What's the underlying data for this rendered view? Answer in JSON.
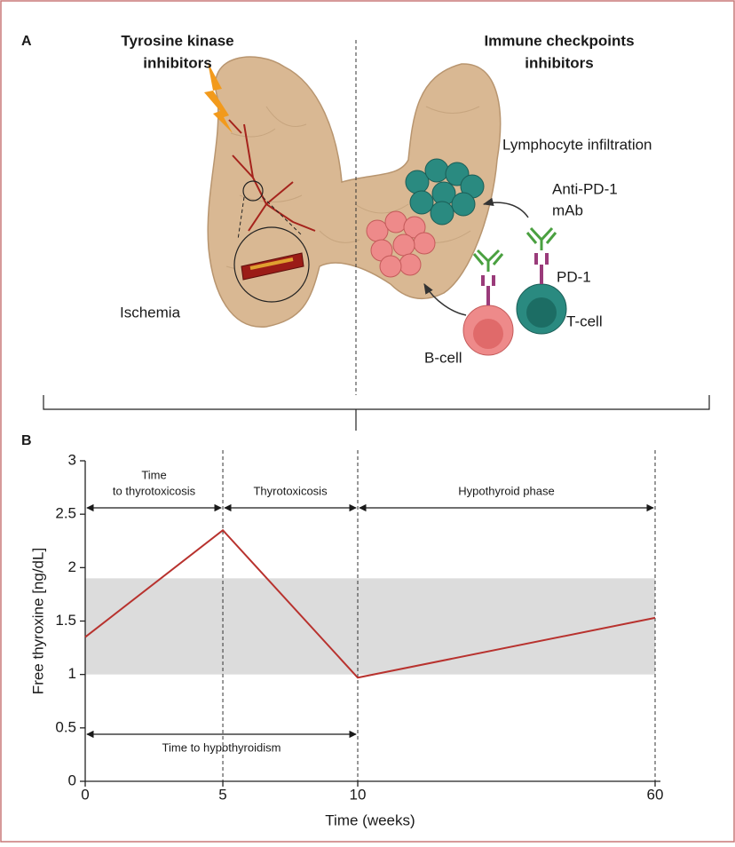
{
  "panel_a": {
    "label": "A",
    "left_title": [
      "Tyrosine kinase",
      "inhibitors"
    ],
    "right_title": [
      "Immune checkpoints",
      "inhibitors"
    ],
    "ischemia": "Ischemia",
    "lymphocyte_infiltration": "Lymphocyte infiltration",
    "antibody": [
      "Anti-PD-1",
      "mAb"
    ],
    "pd1": "PD-1",
    "t_cell": "T-cell",
    "b_cell": "B-cell"
  },
  "chart_data": {
    "type": "line",
    "panel_label": "B",
    "x_label": "Time (weeks)",
    "y_label": "Free thyroxine [ng/dL]",
    "categories": [
      "0",
      "5",
      "10",
      "60"
    ],
    "values": [
      1.35,
      2.35,
      0.97,
      1.53
    ],
    "color": "#b8322e",
    "normal_range": [
      1,
      1.9
    ],
    "normal_range_color": "#dcdcdc",
    "ylim": [
      0,
      3
    ],
    "yticks": [
      0,
      0.5,
      1,
      1.5,
      2,
      2.5,
      3
    ],
    "grid": false,
    "annotations": [
      [
        "Time",
        "to thyrotoxicosis"
      ],
      [
        "Thyrotoxicosis"
      ],
      [
        "Hypothyroid phase"
      ],
      [
        "Time to hypothyroidism"
      ]
    ]
  }
}
